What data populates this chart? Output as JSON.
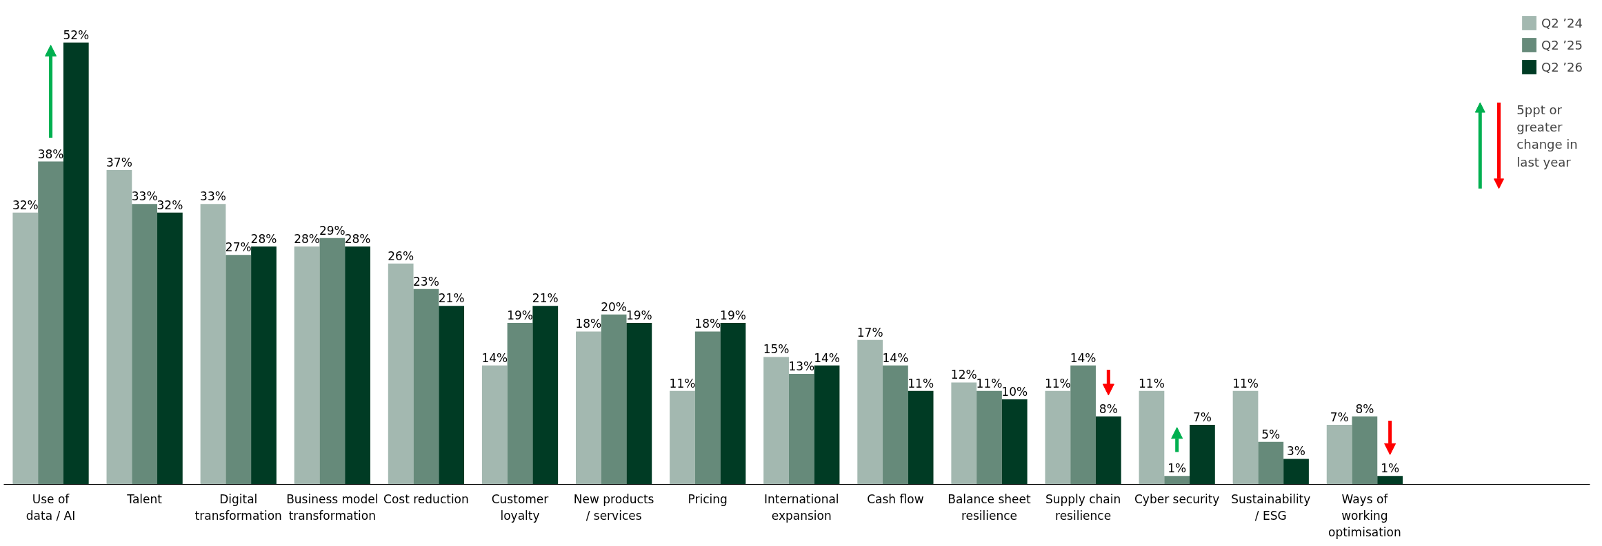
{
  "chart_data": {
    "type": "bar",
    "categories": [
      "Use of\ndata / AI",
      "Talent",
      "Digital\ntransformation",
      "Business model\ntransformation",
      "Cost reduction",
      "Customer\nloyalty",
      "New products\n/ services",
      "Pricing",
      "International\nexpansion",
      "Cash flow",
      "Balance sheet\nresilience",
      "Supply chain\nresilience",
      "Cyber security",
      "Sustainability\n/ ESG",
      "Ways of\nworking\noptimisation"
    ],
    "series": [
      {
        "name": "Q2 ’24",
        "color": "#a3b8b0",
        "values": [
          32,
          37,
          33,
          28,
          26,
          14,
          18,
          11,
          15,
          17,
          12,
          11,
          11,
          11,
          7
        ],
        "value_labels": [
          "32%",
          "37%",
          "33%",
          "28%",
          "26%",
          "14%",
          "18%",
          "11%",
          "15%",
          "17%",
          "12%",
          "11%",
          "11%",
          "11%",
          "7%"
        ]
      },
      {
        "name": "Q2 ’25",
        "color": "#668a7a",
        "values": [
          38,
          33,
          27,
          29,
          23,
          19,
          20,
          18,
          13,
          14,
          11,
          14,
          1,
          5,
          8
        ],
        "value_labels": [
          "38%",
          "33%",
          "27%",
          "29%",
          "23%",
          "19%",
          "20%",
          "18%",
          "13%",
          "14%",
          "11%",
          "14%",
          "1%",
          "5%",
          "8%"
        ]
      },
      {
        "name": "Q2 ’26",
        "color": "#003b24",
        "values": [
          52,
          32,
          28,
          28,
          21,
          21,
          19,
          19,
          14,
          11,
          10,
          8,
          7,
          3,
          1
        ],
        "value_labels": [
          "52%",
          "32%",
          "28%",
          "28%",
          "21%",
          "21%",
          "19%",
          "19%",
          "14%",
          "11%",
          "10%",
          "8%",
          "7%",
          "3%",
          "1%"
        ]
      }
    ],
    "legend": "top right",
    "grid": false,
    "annotations": [
      "5ppt or\ngreater\nchange in\nlast year"
    ]
  }
}
